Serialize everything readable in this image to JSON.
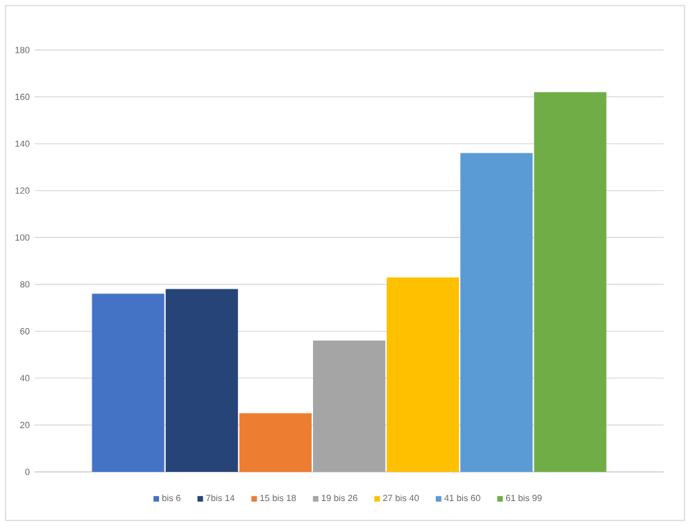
{
  "chart_data": {
    "type": "bar",
    "categories": [
      null
    ],
    "series": [
      {
        "name": "bis 6",
        "color": "#4472c4",
        "values": [
          76
        ]
      },
      {
        "name": "7bis 14",
        "color": "#264478",
        "values": [
          78
        ]
      },
      {
        "name": "15 bis 18",
        "color": "#ed7d31",
        "values": [
          25
        ]
      },
      {
        "name": "19 bis 26",
        "color": "#a5a5a5",
        "values": [
          56
        ]
      },
      {
        "name": "27 bis 40",
        "color": "#ffc000",
        "values": [
          83
        ]
      },
      {
        "name": "41 bis 60",
        "color": "#5b9bd5",
        "values": [
          136
        ]
      },
      {
        "name": "61 bis 99",
        "color": "#70ad47",
        "values": [
          162
        ]
      }
    ],
    "ylim": [
      0,
      180
    ],
    "yticks": [
      0,
      20,
      40,
      60,
      80,
      100,
      120,
      140,
      160,
      180
    ],
    "grid": "y",
    "legend": "bottom"
  }
}
